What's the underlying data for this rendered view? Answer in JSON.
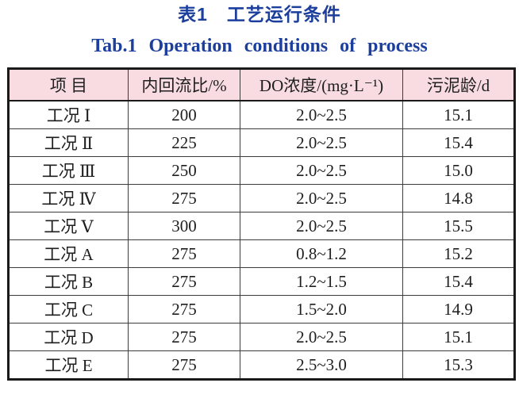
{
  "titles": {
    "zh": "表1　工艺运行条件",
    "en": "Tab.1 Operation conditions of process",
    "color": "#1c3e9c"
  },
  "table": {
    "header_bg": "#f8dce2",
    "columns": [
      "项 目",
      "内回流比/%",
      "DO浓度/(mg·L⁻¹)",
      "污泥龄/d"
    ],
    "rows": [
      [
        "工况 Ⅰ",
        "200",
        "2.0~2.5",
        "15.1"
      ],
      [
        "工况 Ⅱ",
        "225",
        "2.0~2.5",
        "15.4"
      ],
      [
        "工况 Ⅲ",
        "250",
        "2.0~2.5",
        "15.0"
      ],
      [
        "工况 Ⅳ",
        "275",
        "2.0~2.5",
        "14.8"
      ],
      [
        "工况 Ⅴ",
        "300",
        "2.0~2.5",
        "15.5"
      ],
      [
        "工况 A",
        "275",
        "0.8~1.2",
        "15.2"
      ],
      [
        "工况 B",
        "275",
        "1.2~1.5",
        "15.4"
      ],
      [
        "工况 C",
        "275",
        "1.5~2.0",
        "14.9"
      ],
      [
        "工况 D",
        "275",
        "2.0~2.5",
        "15.1"
      ],
      [
        "工况 E",
        "275",
        "2.5~3.0",
        "15.3"
      ]
    ]
  },
  "chart_data": {
    "type": "table",
    "title": "表1 工艺运行条件 / Tab.1 Operation conditions of process",
    "columns": [
      "项 目",
      "内回流比/%",
      "DO浓度/(mg·L⁻¹)",
      "污泥龄/d"
    ],
    "rows": [
      [
        "工况 Ⅰ",
        200,
        "2.0~2.5",
        15.1
      ],
      [
        "工况 Ⅱ",
        225,
        "2.0~2.5",
        15.4
      ],
      [
        "工况 Ⅲ",
        250,
        "2.0~2.5",
        15.0
      ],
      [
        "工况 Ⅳ",
        275,
        "2.0~2.5",
        14.8
      ],
      [
        "工况 Ⅴ",
        300,
        "2.0~2.5",
        15.5
      ],
      [
        "工况 A",
        275,
        "0.8~1.2",
        15.2
      ],
      [
        "工况 B",
        275,
        "1.2~1.5",
        15.4
      ],
      [
        "工况 C",
        275,
        "1.5~2.0",
        14.9
      ],
      [
        "工况 D",
        275,
        "2.0~2.5",
        15.1
      ],
      [
        "工况 E",
        275,
        "2.5~3.0",
        15.3
      ]
    ]
  }
}
